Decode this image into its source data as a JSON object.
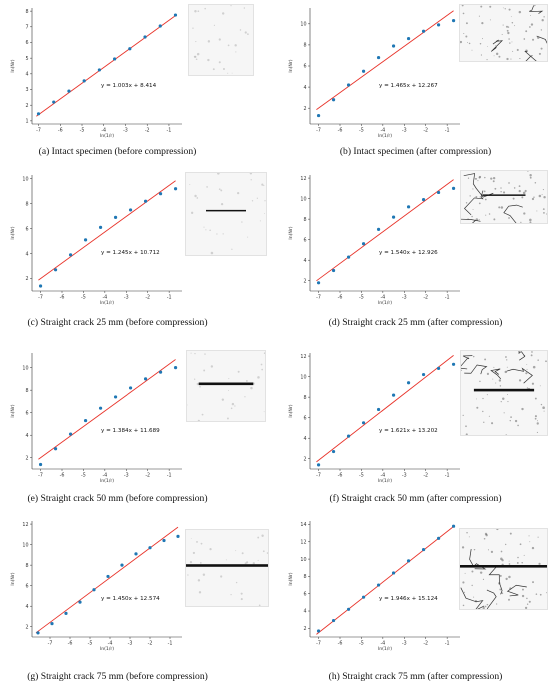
{
  "chart_data": [
    {
      "id": "a",
      "type": "scatter",
      "caption": "(a)  Intact specimen (before compression)",
      "equation": "y = 1.003x + 8.414",
      "xlabel": "ln(1/r)",
      "ylabel": "ln(Nr)",
      "xlim": [
        -7.3,
        -0.4
      ],
      "ylim": [
        0.8,
        8.2
      ],
      "xticks": [
        -7,
        -6,
        -5,
        -4,
        -3,
        -2,
        -1
      ],
      "yticks": [
        1,
        2,
        3,
        4,
        5,
        6,
        7,
        8
      ],
      "fit": {
        "slope": 1.003,
        "intercept": 8.414
      },
      "x": [
        -7,
        -6.3,
        -5.6,
        -4.9,
        -4.2,
        -3.5,
        -2.8,
        -2.1,
        -1.4,
        -0.7
      ],
      "y": [
        1.45,
        2.2,
        2.9,
        3.55,
        4.25,
        4.95,
        5.6,
        6.35,
        7.05,
        7.75
      ],
      "crack": "none",
      "stage": "before"
    },
    {
      "id": "b",
      "type": "scatter",
      "caption": "(b)  Intact specimen (after compression)",
      "equation": "y = 1.465x + 12.267",
      "xlabel": "ln(1/r)",
      "ylabel": "ln(Nr)",
      "xlim": [
        -7.4,
        -0.4
      ],
      "ylim": [
        0.5,
        11.5
      ],
      "xticks": [
        -7,
        -6,
        -5,
        -4,
        -3,
        -2,
        -1
      ],
      "yticks": [
        2,
        4,
        6,
        8,
        10
      ],
      "fit": {
        "slope": 1.465,
        "intercept": 12.267
      },
      "x": [
        -7,
        -6.3,
        -5.6,
        -4.9,
        -4.2,
        -3.5,
        -2.8,
        -2.1,
        -1.4,
        -0.7
      ],
      "y": [
        1.3,
        2.8,
        4.2,
        5.5,
        6.8,
        7.9,
        8.6,
        9.3,
        9.9,
        10.3
      ],
      "crack": "none",
      "stage": "after"
    },
    {
      "id": "c",
      "type": "scatter",
      "caption": "(c) Straight crack 25 mm (before compression)",
      "equation": "y = 1.245x + 10.712",
      "xlabel": "ln(1/r)",
      "ylabel": "ln(Nr)",
      "xlim": [
        -7.4,
        -0.4
      ],
      "ylim": [
        1,
        10.3
      ],
      "xticks": [
        -7,
        -6,
        -5,
        -4,
        -3,
        -2,
        -1
      ],
      "yticks": [
        2,
        4,
        6,
        8,
        10
      ],
      "fit": {
        "slope": 1.245,
        "intercept": 10.712
      },
      "x": [
        -7,
        -6.3,
        -5.6,
        -4.9,
        -4.2,
        -3.5,
        -2.8,
        -2.1,
        -1.4,
        -0.7
      ],
      "y": [
        1.4,
        2.7,
        3.9,
        5.1,
        6.1,
        6.9,
        7.5,
        8.2,
        8.8,
        9.2
      ],
      "crack": "25",
      "stage": "before"
    },
    {
      "id": "d",
      "type": "scatter",
      "caption": "(d) Straight crack 25 mm (after compression)",
      "equation": "y = 1.540x + 12.926",
      "xlabel": "ln(1/r)",
      "ylabel": "ln(Nr)",
      "xlim": [
        -7.4,
        -0.4
      ],
      "ylim": [
        1,
        12.3
      ],
      "xticks": [
        -7,
        -6,
        -5,
        -4,
        -3,
        -2,
        -1
      ],
      "yticks": [
        2,
        4,
        6,
        8,
        10,
        12
      ],
      "fit": {
        "slope": 1.54,
        "intercept": 12.926
      },
      "x": [
        -7,
        -6.3,
        -5.6,
        -4.9,
        -4.2,
        -3.5,
        -2.8,
        -2.1,
        -1.4,
        -0.7
      ],
      "y": [
        1.8,
        3.0,
        4.3,
        5.6,
        7.0,
        8.2,
        9.2,
        9.9,
        10.6,
        11.0
      ],
      "crack": "25",
      "stage": "after"
    },
    {
      "id": "e",
      "type": "scatter",
      "caption": "(e) Straight crack 50 mm (before compression)",
      "equation": "y = 1.384x + 11.689",
      "xlabel": "ln(1/r)",
      "ylabel": "ln(Nr)",
      "xlim": [
        -7.4,
        -0.4
      ],
      "ylim": [
        1,
        11.3
      ],
      "xticks": [
        -7,
        -6,
        -5,
        -4,
        -3,
        -2,
        -1
      ],
      "yticks": [
        2,
        4,
        6,
        8,
        10
      ],
      "fit": {
        "slope": 1.384,
        "intercept": 11.689
      },
      "x": [
        -7,
        -6.3,
        -5.6,
        -4.9,
        -4.2,
        -3.5,
        -2.8,
        -2.1,
        -1.4,
        -0.7
      ],
      "y": [
        1.4,
        2.8,
        4.1,
        5.3,
        6.4,
        7.4,
        8.2,
        9.0,
        9.6,
        10.0
      ],
      "crack": "50",
      "stage": "before"
    },
    {
      "id": "f",
      "type": "scatter",
      "caption": "(f) Straight crack 50 mm (after compression)",
      "equation": "y = 1.621x + 13.202",
      "xlabel": "ln(1/r)",
      "ylabel": "ln(Nr)",
      "xlim": [
        -7.4,
        -0.4
      ],
      "ylim": [
        1,
        12.3
      ],
      "xticks": [
        -7,
        -6,
        -5,
        -4,
        -3,
        -2,
        -1
      ],
      "yticks": [
        2,
        4,
        6,
        8,
        10,
        12
      ],
      "fit": {
        "slope": 1.621,
        "intercept": 13.202
      },
      "x": [
        -7,
        -6.3,
        -5.6,
        -4.9,
        -4.2,
        -3.5,
        -2.8,
        -2.1,
        -1.4,
        -0.7
      ],
      "y": [
        1.4,
        2.7,
        4.2,
        5.5,
        6.8,
        8.2,
        9.4,
        10.2,
        10.8,
        11.2
      ],
      "crack": "50",
      "stage": "after"
    },
    {
      "id": "g",
      "type": "scatter",
      "caption": "(g) Straight crack 75 mm (before compression)",
      "equation": "y = 1.450x + 12.574",
      "xlabel": "ln(1/r)",
      "ylabel": "ln(Nr)",
      "xlim": [
        -7.9,
        -0.4
      ],
      "ylim": [
        1,
        12.3
      ],
      "xticks": [
        -7,
        -6,
        -5,
        -4,
        -3,
        -2,
        -1
      ],
      "yticks": [
        2,
        4,
        6,
        8,
        10,
        12
      ],
      "fit": {
        "slope": 1.45,
        "intercept": 12.574
      },
      "x": [
        -7.6,
        -6.9,
        -6.2,
        -5.5,
        -4.8,
        -4.1,
        -3.4,
        -2.7,
        -2.0,
        -1.3,
        -0.6
      ],
      "y": [
        1.4,
        2.3,
        3.3,
        4.4,
        5.6,
        6.9,
        8.0,
        9.1,
        9.7,
        10.4,
        10.8
      ],
      "crack": "75",
      "stage": "before"
    },
    {
      "id": "h",
      "type": "scatter",
      "caption": "(h) Straight crack 75 mm (after compression)",
      "equation": "y = 1.946x + 15.124",
      "xlabel": "ln(1/r)",
      "ylabel": "ln(Nr)",
      "xlim": [
        -7.4,
        -0.4
      ],
      "ylim": [
        1,
        14.4
      ],
      "xticks": [
        -7,
        -6,
        -5,
        -4,
        -3,
        -2,
        -1
      ],
      "yticks": [
        2,
        4,
        6,
        8,
        10,
        12,
        14
      ],
      "fit": {
        "slope": 1.946,
        "intercept": 15.124
      },
      "x": [
        -7,
        -6.3,
        -5.6,
        -4.9,
        -4.2,
        -3.5,
        -2.8,
        -2.1,
        -1.4,
        -0.7
      ],
      "y": [
        1.7,
        2.9,
        4.2,
        5.6,
        7.0,
        8.4,
        9.8,
        11.1,
        12.4,
        13.8
      ],
      "crack": "75",
      "stage": "after"
    }
  ],
  "colors": {
    "points": "#1f77b4",
    "fit": "#e8332a",
    "axis": "#333333",
    "crack": "#111111"
  }
}
